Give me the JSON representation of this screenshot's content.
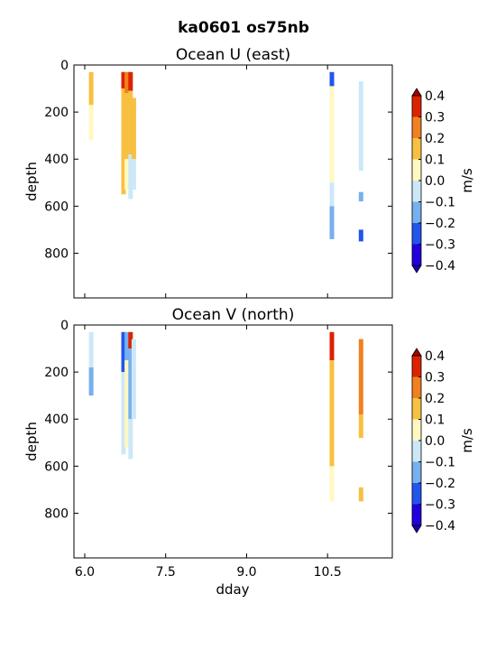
{
  "figure": {
    "suptitle": "ka0601 os75nb",
    "xlabel": "dday",
    "x_ticks": [
      "6.0",
      "7.5",
      "9.0",
      "10.5"
    ]
  },
  "colorbar": {
    "unit_label": "m/s",
    "levels": [
      -0.4,
      -0.3,
      -0.2,
      -0.1,
      0.0,
      0.1,
      0.2,
      0.3,
      0.4
    ],
    "level_labels": [
      "0.4",
      "0.3",
      "0.2",
      "0.1",
      "0.0",
      "−0.1",
      "−0.2",
      "−0.3",
      "−0.4"
    ],
    "colors": [
      "#2200dd",
      "#2255ee",
      "#77b0ee",
      "#cce8f8",
      "#fff8c0",
      "#f8c040",
      "#f08020",
      "#dd2200"
    ],
    "under_color": "#1800bb",
    "over_color": "#aa0000"
  },
  "chart_data": [
    {
      "type": "heatmap",
      "title": "Ocean U (east)",
      "xlabel": "",
      "ylabel": "depth",
      "xlim": [
        5.8,
        11.7
      ],
      "ylim": [
        990,
        0
      ],
      "y_ticks": [
        "0",
        "200",
        "400",
        "600",
        "800"
      ],
      "cells": [
        {
          "x": 6.12,
          "y0": 30,
          "y1": 170,
          "v": 0.15
        },
        {
          "x": 6.12,
          "y0": 170,
          "y1": 320,
          "v": 0.05
        },
        {
          "x": 6.72,
          "y0": 30,
          "y1": 100,
          "v": 0.35
        },
        {
          "x": 6.72,
          "y0": 100,
          "y1": 370,
          "v": 0.15
        },
        {
          "x": 6.72,
          "y0": 370,
          "y1": 550,
          "v": 0.15
        },
        {
          "x": 6.78,
          "y0": 30,
          "y1": 120,
          "v": 0.25
        },
        {
          "x": 6.78,
          "y0": 120,
          "y1": 400,
          "v": 0.15
        },
        {
          "x": 6.78,
          "y0": 400,
          "y1": 530,
          "v": 0.05
        },
        {
          "x": 6.85,
          "y0": 30,
          "y1": 110,
          "v": 0.35
        },
        {
          "x": 6.85,
          "y0": 110,
          "y1": 380,
          "v": 0.15
        },
        {
          "x": 6.85,
          "y0": 380,
          "y1": 570,
          "v": -0.05
        },
        {
          "x": 6.91,
          "y0": 140,
          "y1": 400,
          "v": 0.15
        },
        {
          "x": 6.91,
          "y0": 400,
          "y1": 530,
          "v": -0.05
        },
        {
          "x": 10.58,
          "y0": 30,
          "y1": 90,
          "v": -0.25
        },
        {
          "x": 10.58,
          "y0": 90,
          "y1": 500,
          "v": 0.05
        },
        {
          "x": 10.58,
          "y0": 500,
          "y1": 600,
          "v": -0.05
        },
        {
          "x": 10.58,
          "y0": 600,
          "y1": 740,
          "v": -0.15
        },
        {
          "x": 11.12,
          "y0": 70,
          "y1": 450,
          "v": -0.05
        },
        {
          "x": 11.12,
          "y0": 540,
          "y1": 580,
          "v": -0.15
        },
        {
          "x": 11.12,
          "y0": 700,
          "y1": 750,
          "v": -0.25
        }
      ]
    },
    {
      "type": "heatmap",
      "title": "Ocean V (north)",
      "xlabel": "dday",
      "ylabel": "depth",
      "xlim": [
        5.8,
        11.7
      ],
      "ylim": [
        990,
        0
      ],
      "y_ticks": [
        "0",
        "200",
        "400",
        "600",
        "800"
      ],
      "cells": [
        {
          "x": 6.12,
          "y0": 30,
          "y1": 180,
          "v": -0.05
        },
        {
          "x": 6.12,
          "y0": 180,
          "y1": 300,
          "v": -0.15
        },
        {
          "x": 6.72,
          "y0": 30,
          "y1": 200,
          "v": -0.25
        },
        {
          "x": 6.72,
          "y0": 200,
          "y1": 550,
          "v": -0.05
        },
        {
          "x": 6.78,
          "y0": 30,
          "y1": 150,
          "v": -0.15
        },
        {
          "x": 6.78,
          "y0": 150,
          "y1": 520,
          "v": 0.05
        },
        {
          "x": 6.85,
          "y0": 30,
          "y1": 100,
          "v": 0.35
        },
        {
          "x": 6.85,
          "y0": 100,
          "y1": 400,
          "v": -0.15
        },
        {
          "x": 6.85,
          "y0": 400,
          "y1": 570,
          "v": -0.05
        },
        {
          "x": 6.91,
          "y0": 60,
          "y1": 400,
          "v": -0.05
        },
        {
          "x": 10.58,
          "y0": 30,
          "y1": 150,
          "v": 0.35
        },
        {
          "x": 10.58,
          "y0": 150,
          "y1": 600,
          "v": 0.15
        },
        {
          "x": 10.58,
          "y0": 600,
          "y1": 750,
          "v": 0.05
        },
        {
          "x": 11.12,
          "y0": 60,
          "y1": 380,
          "v": 0.25
        },
        {
          "x": 11.12,
          "y0": 380,
          "y1": 480,
          "v": 0.15
        },
        {
          "x": 11.12,
          "y0": 690,
          "y1": 750,
          "v": 0.15
        }
      ]
    }
  ]
}
